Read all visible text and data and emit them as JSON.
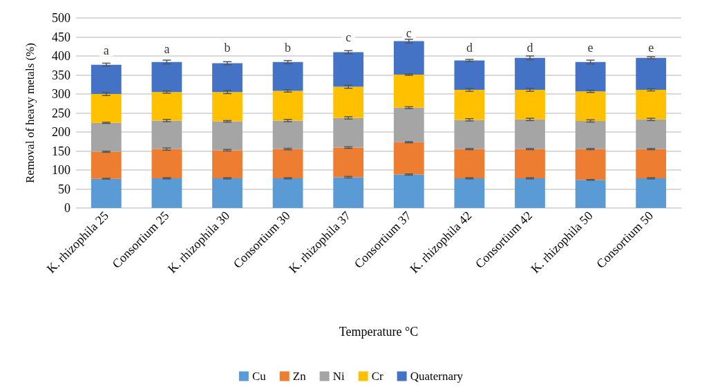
{
  "chart_data": {
    "type": "bar",
    "stacked": true,
    "xlabel": "Temperature °C",
    "ylabel": "Removal of heavy metals (%)",
    "categories": [
      "K. rhizophila 25",
      "Consortium 25",
      "K. rhizophila 30",
      "Consortium 30",
      "K. rhizophila 37",
      "Consortium 37",
      "K. rhizophila 42",
      "Consortium 42",
      "K. rhizophila 50",
      "Consortium 50"
    ],
    "series": [
      {
        "name": "Cu",
        "color": "#5b9bd5",
        "values": [
          77,
          78,
          78,
          78,
          81,
          88,
          78,
          78,
          74,
          78
        ],
        "errors": [
          1,
          1.5,
          1.5,
          1.5,
          2,
          1.5,
          1.5,
          1.5,
          1,
          1.5
        ]
      },
      {
        "name": "Zn",
        "color": "#ed7d31",
        "values": [
          71,
          77,
          74,
          77,
          78,
          85,
          77,
          77,
          81,
          77
        ],
        "errors": [
          1.5,
          3,
          2,
          2,
          2,
          1.5,
          1.5,
          1.5,
          1.5,
          1.5
        ]
      },
      {
        "name": "Ni",
        "color": "#a5a5a5",
        "values": [
          76,
          75,
          76,
          75,
          78,
          91,
          77,
          78,
          74,
          78
        ],
        "errors": [
          1.5,
          3,
          2,
          3,
          3,
          2.5,
          3,
          3,
          3,
          3
        ]
      },
      {
        "name": "Cr",
        "color": "#ffc000",
        "values": [
          76,
          75,
          77,
          78,
          82,
          87,
          79,
          78,
          78,
          78
        ],
        "errors": [
          4,
          3,
          4,
          3,
          4,
          2,
          4,
          4,
          3,
          3
        ]
      },
      {
        "name": "Quaternary",
        "color": "#4472c4",
        "values": [
          77,
          79,
          76,
          76,
          91,
          88,
          77,
          84,
          77,
          84
        ],
        "errors": [
          4,
          5,
          4,
          4,
          4,
          5,
          3,
          5,
          5,
          3
        ]
      }
    ],
    "ylim": [
      0,
      500
    ],
    "yticks": [
      0,
      50,
      100,
      150,
      200,
      250,
      300,
      350,
      400,
      450,
      500
    ],
    "grid": "y",
    "legend": "bottom",
    "annotations": [
      {
        "text": "a",
        "x": "K. rhizophila 25",
        "y": 415
      },
      {
        "text": "a",
        "x": "Consortium 25",
        "y": 418
      },
      {
        "text": "b",
        "x": "K. rhizophila 30",
        "y": 422
      },
      {
        "text": "b",
        "x": "Consortium 30",
        "y": 422
      },
      {
        "text": "c",
        "x": "K. rhizophila 37",
        "y": 450
      },
      {
        "text": "c",
        "x": "Consortium 37",
        "y": 460
      },
      {
        "text": "d",
        "x": "K. rhizophila 42",
        "y": 422
      },
      {
        "text": "d",
        "x": "Consortium 42",
        "y": 422
      },
      {
        "text": "e",
        "x": "K. rhizophila 50",
        "y": 422
      },
      {
        "text": "e",
        "x": "Consortium 50",
        "y": 422
      }
    ]
  }
}
